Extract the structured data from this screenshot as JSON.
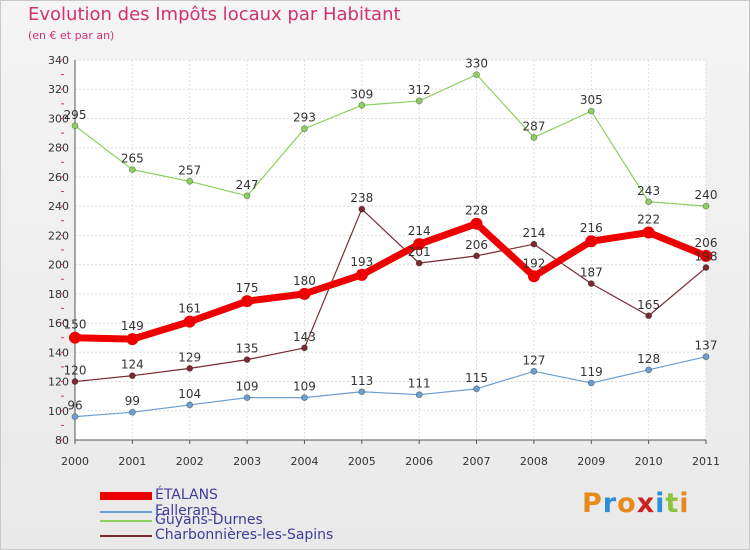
{
  "title": "Evolution des Impôts locaux par Habitant",
  "subtitle": "(en € et par an)",
  "chart_data": {
    "type": "line",
    "x": [
      "2000",
      "2001",
      "2002",
      "2003",
      "2004",
      "2005",
      "2006",
      "2007",
      "2008",
      "2009",
      "2010",
      "2011"
    ],
    "ylim": [
      80,
      340
    ],
    "yticks": [
      80,
      100,
      120,
      140,
      160,
      180,
      200,
      220,
      240,
      260,
      280,
      300,
      320,
      340
    ],
    "grid": true,
    "legend_position": "bottom-left",
    "series": [
      {
        "name": "ÉTALANS",
        "color": "#ee0000",
        "values": [
          150,
          149,
          161,
          175,
          180,
          193,
          214,
          228,
          192,
          216,
          222,
          206
        ]
      },
      {
        "name": "Fallerans",
        "color": "#6b9fd0",
        "values": [
          96,
          99,
          104,
          109,
          109,
          113,
          111,
          115,
          127,
          119,
          128,
          137
        ]
      },
      {
        "name": "Guyans-Durnes",
        "color": "#8ed060",
        "values": [
          295,
          265,
          257,
          247,
          293,
          309,
          312,
          330,
          287,
          305,
          243,
          240
        ]
      },
      {
        "name": "Charbonnières-les-Sapins",
        "color": "#7a2a30",
        "values": [
          120,
          124,
          129,
          135,
          143,
          238,
          201,
          206,
          214,
          187,
          165,
          198
        ]
      }
    ]
  },
  "logo": {
    "letters": [
      "P",
      "r",
      "o",
      "x",
      "i",
      "t",
      "i"
    ],
    "colors": [
      "#e68a1e",
      "#2b8fd8",
      "#e68a1e",
      "#cc2222",
      "#2b8fd8",
      "#8cc43c",
      "#e68a1e"
    ]
  }
}
